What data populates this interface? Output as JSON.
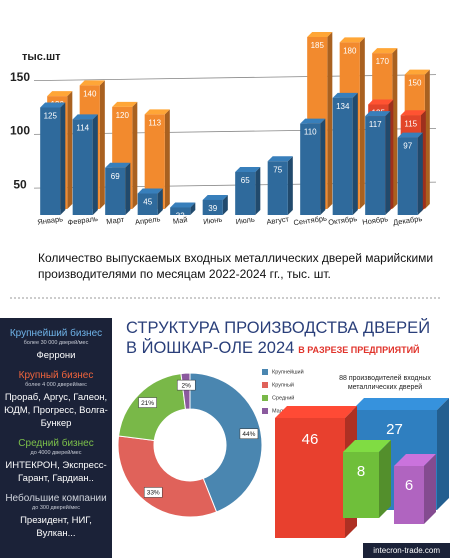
{
  "chart_data": [
    {
      "type": "bar",
      "title": "Количество выпускаемых входных металлических дверей марийскими производителями по месяцам 2022-2024 гг., тыс. шт.",
      "y_label": "тыс.шт",
      "categories": [
        "Январь",
        "Февраль",
        "Март",
        "Апрель",
        "Май",
        "Июнь",
        "Июль",
        "Август",
        "Сентябрь",
        "Октябрь",
        "Ноябрь",
        "Декабрь"
      ],
      "series": [
        {
          "color": "#2f6a9c",
          "values": [
            125,
            114,
            69,
            45,
            32,
            39,
            65,
            75,
            110,
            134,
            117,
            97
          ]
        },
        {
          "color": "#f28a2e",
          "values": [
            130,
            140,
            120,
            113,
            null,
            null,
            null,
            null,
            185,
            180,
            170,
            150
          ]
        },
        {
          "color": "#e2452a",
          "values": [
            null,
            null,
            null,
            null,
            null,
            null,
            null,
            null,
            null,
            null,
            125,
            115
          ]
        }
      ],
      "ylim": [
        25,
        225
      ],
      "yticks": [
        50,
        100,
        150
      ],
      "grid": true
    },
    {
      "type": "pie",
      "title": "СТРУКТУРА ПРОИЗВОДСТВА ДВЕРЕЙ В ЙОШКАР-ОЛЕ 2024",
      "subtitle": "В РАЗРЕЗЕ ПРЕДПРИЯТИЙ",
      "categories": [
        "Крупнейший",
        "Крупный",
        "Средний",
        "Малый"
      ],
      "values": [
        44,
        33,
        21,
        2
      ],
      "value_labels": [
        "44%",
        "33%",
        "21%",
        "2%"
      ],
      "colors": [
        "#4a86b0",
        "#e0625a",
        "#79b848",
        "#8b5a9e"
      ]
    },
    {
      "type": "block",
      "annotation": "88 производителей входных металлических дверей",
      "values": [
        46,
        27,
        8,
        6
      ],
      "colors": [
        "#e8402e",
        "#2f7fc0",
        "#6fbf3a",
        "#b064c0"
      ]
    }
  ],
  "panel": {
    "groups": [
      {
        "title": "Крупнейший бизнес",
        "subtitle": "более 30 000 дверей/мес",
        "companies": "Феррони",
        "color": "#6fb3e8"
      },
      {
        "title": "Крупный бизнес",
        "subtitle": "более 4 000 дверей/мес",
        "companies": "Прораб, Аргус, Галеон, ЮДМ, Прогресс, Волга-Бункер",
        "color": "#f0643c"
      },
      {
        "title": "Средний бизнес",
        "subtitle": "до 4000 дверей/мес",
        "companies": "ИНТЕКРОН, Экспресс-Гарант, Гардиан..",
        "color": "#7cc04a"
      },
      {
        "title": "Небольшие компании",
        "subtitle": "до 300 дверей/мес",
        "companies": "Президент, НИГ, Вулкан...",
        "color": "#d0d4dc"
      }
    ]
  },
  "footer": "intecron-trade.com"
}
